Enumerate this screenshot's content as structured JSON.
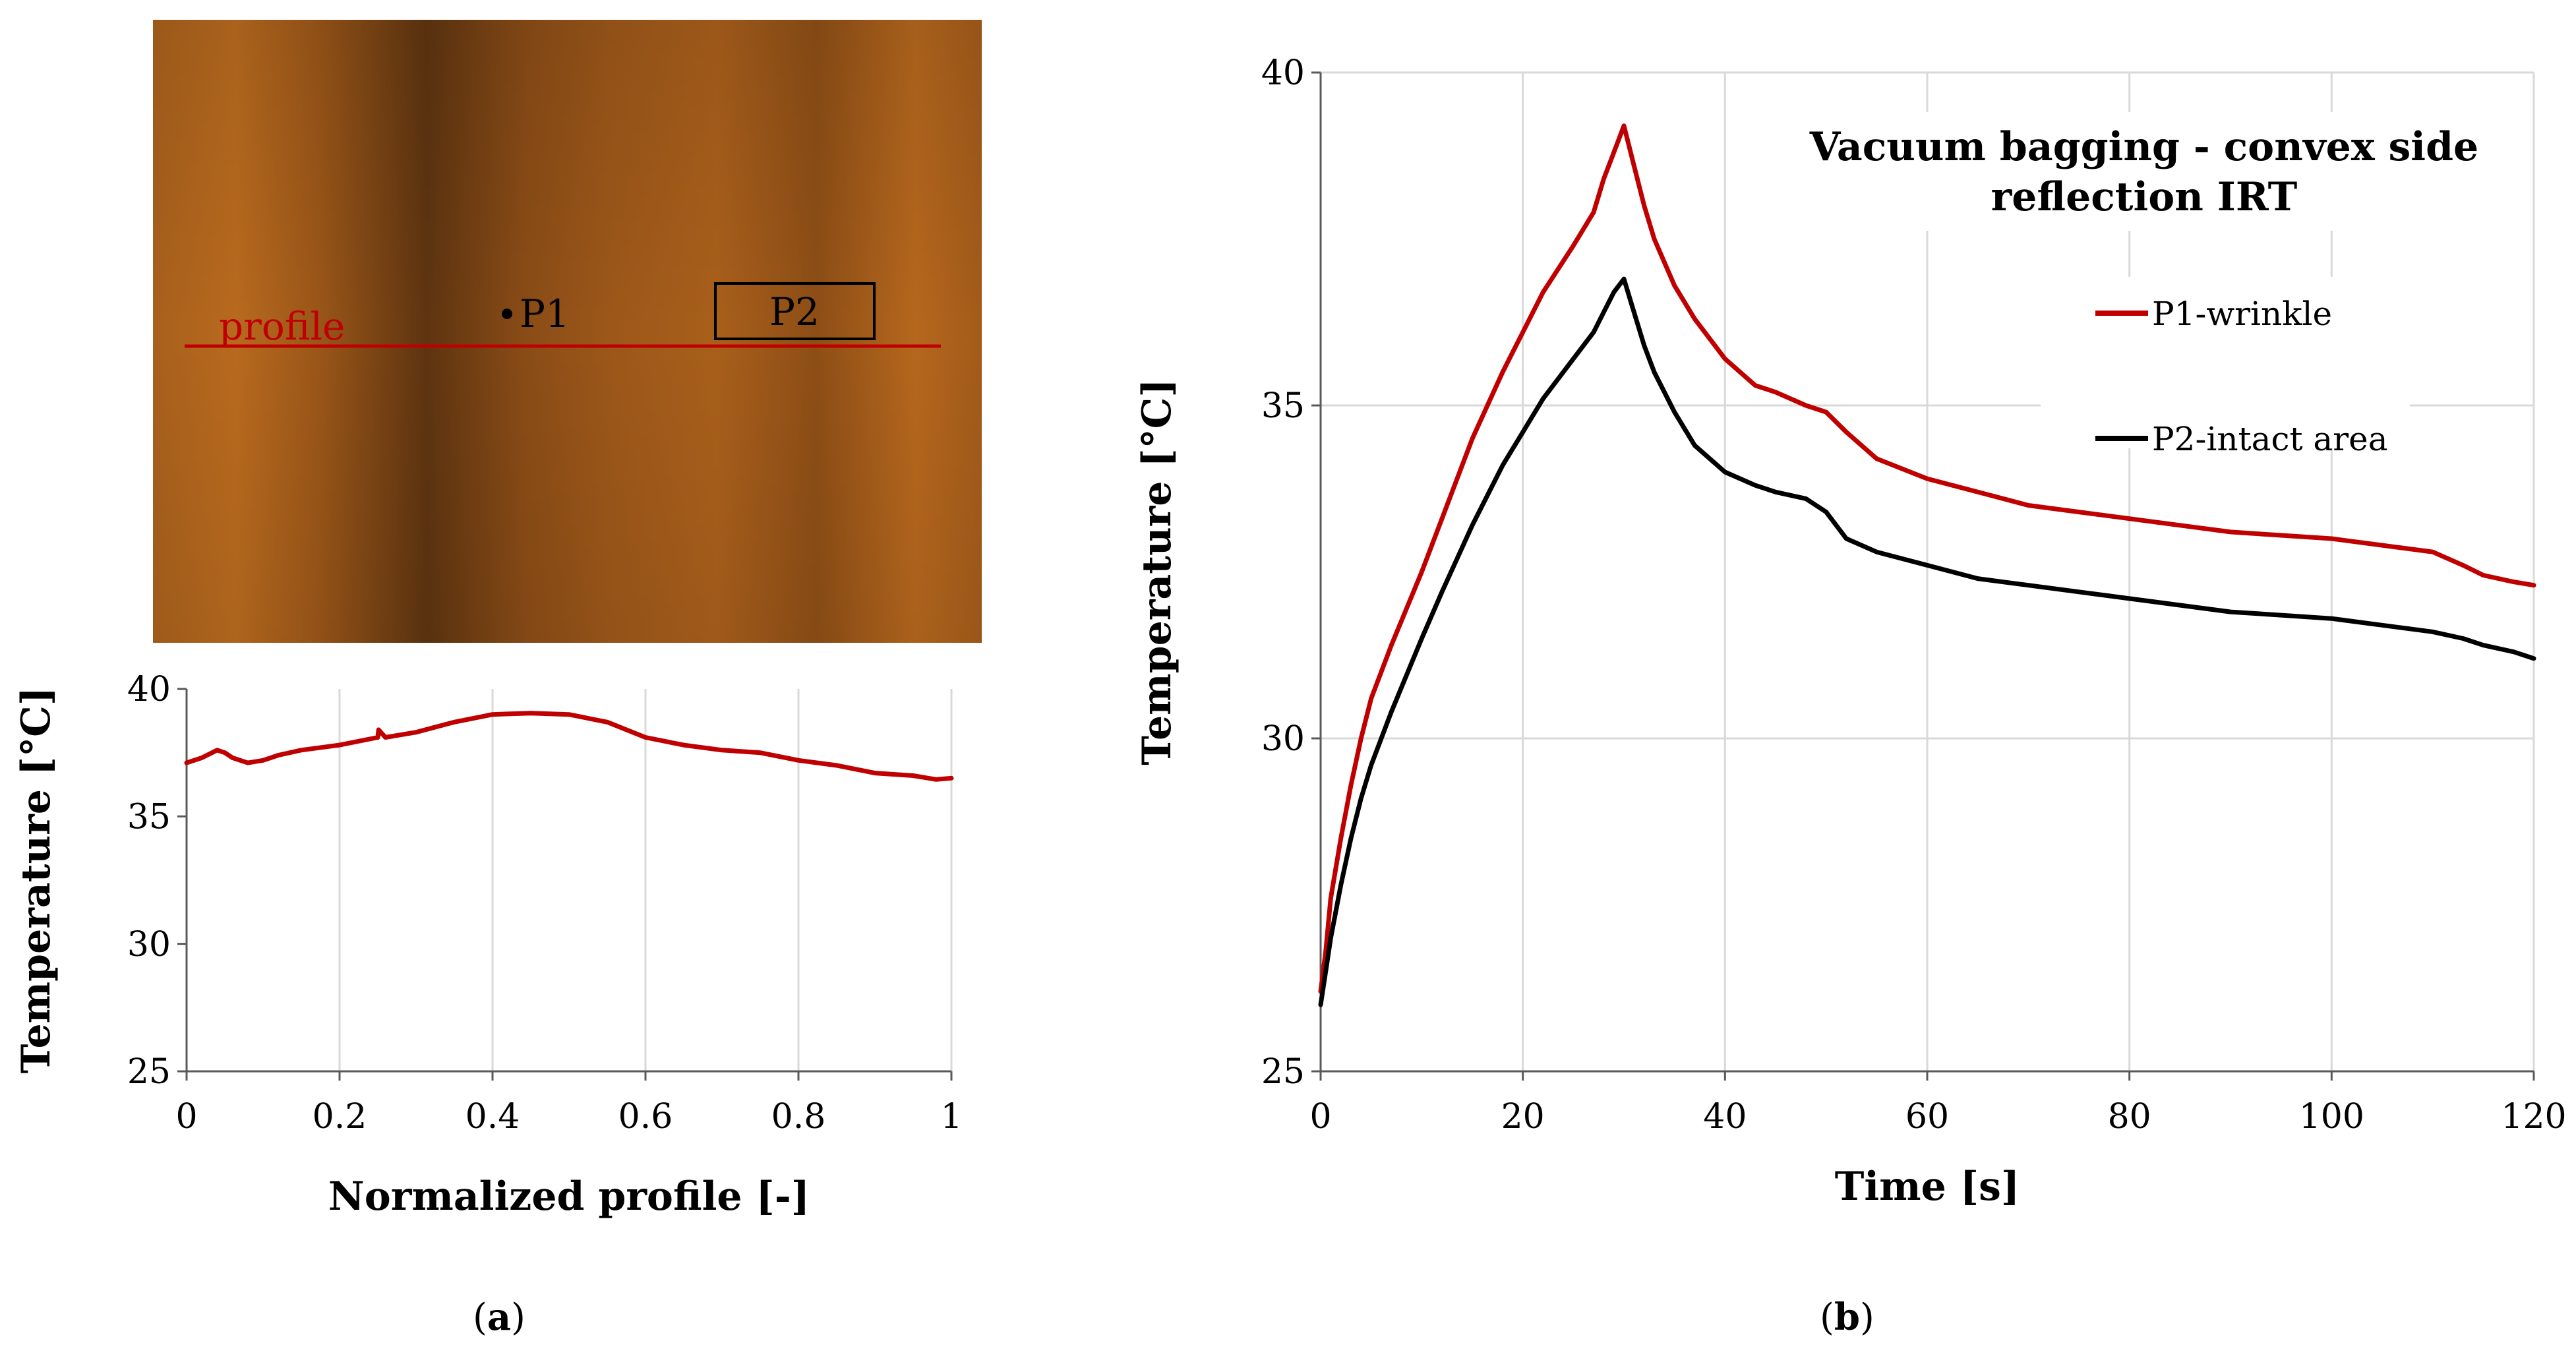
{
  "panel_a": {
    "thermogram": {
      "profile_label": "profile",
      "p1_label": "P1",
      "p2_label": "P2"
    },
    "caption": "(a)"
  },
  "panel_b": {
    "caption": "(b)"
  },
  "colors": {
    "p1": "#c00000",
    "p2": "#000000",
    "profile": "#c00000",
    "grid": "#d9d9d9",
    "axis": "#595959",
    "thermo_light": "#b86a1c",
    "thermo_dark": "#5c3410"
  },
  "chart_data": [
    {
      "id": "profile-chart",
      "type": "line",
      "title": "",
      "xlabel": "Normalized profile [-]",
      "ylabel": "Temperature [°C]",
      "xlim": [
        0,
        1
      ],
      "ylim": [
        25,
        40
      ],
      "xticks": [
        0,
        0.2,
        0.4,
        0.6,
        0.8,
        1
      ],
      "xtick_labels": [
        "0",
        "0.2",
        "0.4",
        "0.6",
        "0.8",
        "1"
      ],
      "yticks": [
        25,
        30,
        35,
        40
      ],
      "ytick_labels": [
        "25",
        "30",
        "35",
        "40"
      ],
      "grid": "vertical",
      "series": [
        {
          "name": "profile",
          "color": "#c00000",
          "x": [
            0,
            0.02,
            0.04,
            0.05,
            0.06,
            0.08,
            0.1,
            0.12,
            0.15,
            0.2,
            0.25,
            0.251,
            0.26,
            0.3,
            0.35,
            0.4,
            0.45,
            0.5,
            0.55,
            0.6,
            0.65,
            0.7,
            0.75,
            0.8,
            0.85,
            0.9,
            0.95,
            0.98,
            1
          ],
          "y": [
            37.1,
            37.3,
            37.6,
            37.5,
            37.3,
            37.1,
            37.2,
            37.4,
            37.6,
            37.8,
            38.1,
            38.4,
            38.1,
            38.3,
            38.7,
            39.0,
            39.05,
            39.0,
            38.7,
            38.1,
            37.8,
            37.6,
            37.5,
            37.2,
            37.0,
            36.7,
            36.6,
            36.45,
            36.5
          ]
        }
      ]
    },
    {
      "id": "time-chart",
      "type": "line",
      "title": "Vacuum bagging - convex side reflection IRT",
      "title_lines": [
        "Vacuum bagging - convex side",
        "reflection IRT"
      ],
      "xlabel": "Time [s]",
      "ylabel": "Temperature [°C]",
      "xlim": [
        0,
        120
      ],
      "ylim": [
        25,
        40
      ],
      "xticks": [
        0,
        20,
        40,
        60,
        80,
        100,
        120
      ],
      "xtick_labels": [
        "0",
        "20",
        "40",
        "60",
        "80",
        "100",
        "120"
      ],
      "yticks": [
        25,
        30,
        35,
        40
      ],
      "ytick_labels": [
        "25",
        "30",
        "35",
        "40"
      ],
      "grid": "both",
      "legend_position": "top-right",
      "series": [
        {
          "name": "P1-wrinkle",
          "color": "#c00000",
          "x": [
            0,
            0.5,
            1,
            2,
            3,
            4,
            5,
            7,
            10,
            12,
            15,
            18,
            20,
            22,
            25,
            27,
            28,
            29,
            30,
            31,
            32,
            33,
            35,
            37,
            40,
            43,
            45,
            48,
            50,
            52,
            55,
            60,
            65,
            70,
            75,
            80,
            85,
            90,
            95,
            100,
            105,
            110,
            113,
            115,
            118,
            120
          ],
          "y": [
            26.2,
            26.8,
            27.6,
            28.5,
            29.3,
            30.0,
            30.6,
            31.4,
            32.5,
            33.3,
            34.5,
            35.5,
            36.1,
            36.7,
            37.4,
            37.9,
            38.4,
            38.8,
            39.2,
            38.6,
            38.0,
            37.5,
            36.8,
            36.3,
            35.7,
            35.3,
            35.2,
            35.0,
            34.9,
            34.6,
            34.2,
            33.9,
            33.7,
            33.5,
            33.4,
            33.3,
            33.2,
            33.1,
            33.05,
            33.0,
            32.9,
            32.8,
            32.6,
            32.45,
            32.35,
            32.3
          ]
        },
        {
          "name": "P2-intact area",
          "color": "#000000",
          "x": [
            0,
            0.5,
            1,
            2,
            3,
            4,
            5,
            7,
            10,
            12,
            15,
            18,
            20,
            22,
            25,
            27,
            28,
            29,
            30,
            31,
            32,
            33,
            35,
            37,
            40,
            43,
            45,
            48,
            50,
            52,
            55,
            60,
            65,
            70,
            75,
            80,
            85,
            90,
            95,
            100,
            105,
            110,
            113,
            115,
            118,
            120
          ],
          "y": [
            26.0,
            26.5,
            27.0,
            27.8,
            28.5,
            29.1,
            29.6,
            30.4,
            31.5,
            32.2,
            33.2,
            34.1,
            34.6,
            35.1,
            35.7,
            36.1,
            36.4,
            36.7,
            36.9,
            36.4,
            35.9,
            35.5,
            34.9,
            34.4,
            34.0,
            33.8,
            33.7,
            33.6,
            33.4,
            33.0,
            32.8,
            32.6,
            32.4,
            32.3,
            32.2,
            32.1,
            32.0,
            31.9,
            31.85,
            31.8,
            31.7,
            31.6,
            31.5,
            31.4,
            31.3,
            31.2
          ]
        }
      ]
    }
  ]
}
